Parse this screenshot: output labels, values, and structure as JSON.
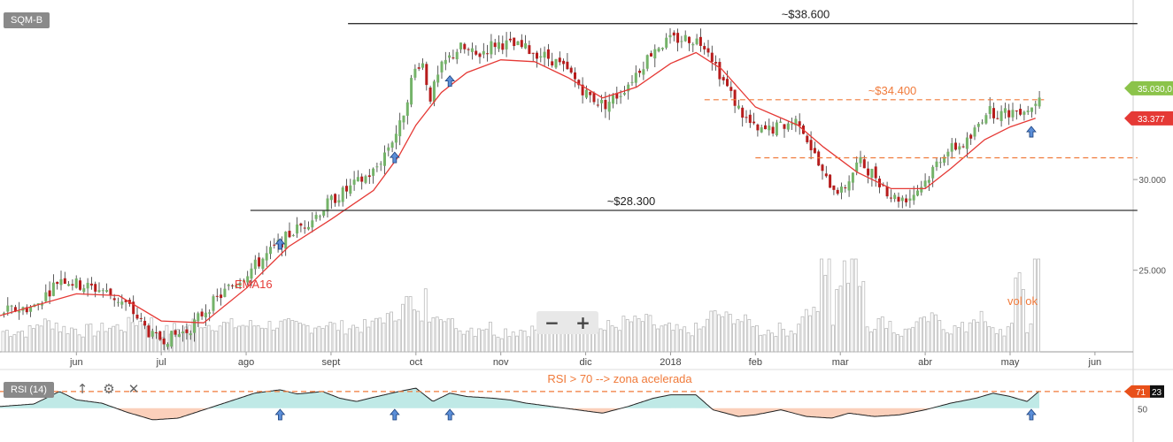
{
  "symbol": "SQM-B",
  "indicator_label": "RSI (14)",
  "tools": {
    "up_icon": "arrow-up-icon",
    "settings_icon": "gear-icon",
    "close_icon": "close-icon"
  },
  "zoom": {
    "minus_label": "−",
    "plus_label": "+"
  },
  "colors": {
    "bull": "#74b369",
    "bear": "#b71c1c",
    "ema": "#e53935",
    "annotation": "#f07a3a",
    "level_line": "#333333",
    "price_up_tag": "#8bc34a",
    "price_down_tag": "#e53935",
    "rsi_over": "#bfe9e6",
    "rsi_under": "#fbd0bb"
  },
  "chart_data": {
    "type": "candlestick",
    "title": "SQM-B",
    "x_ticks": [
      "jun",
      "jul",
      "ago",
      "sept",
      "oct",
      "nov",
      "dic",
      "2018",
      "feb",
      "mar",
      "abr",
      "may",
      "jun"
    ],
    "x_tick_months": [
      5,
      6,
      7,
      8,
      9,
      10,
      11,
      12,
      13,
      14,
      15,
      16,
      17
    ],
    "x_range_months": [
      4.1,
      17.45
    ],
    "y_ticks": [
      25000,
      30000
    ],
    "y_tick_labels": [
      "25.000",
      "30.000"
    ],
    "ylim": [
      20500,
      39900
    ],
    "price_path": [
      [
        4.1,
        22700
      ],
      [
        4.5,
        23000
      ],
      [
        4.8,
        24600
      ],
      [
        5.0,
        24200
      ],
      [
        5.3,
        23900
      ],
      [
        5.6,
        23000
      ],
      [
        5.9,
        21200
      ],
      [
        6.1,
        21300
      ],
      [
        6.3,
        21700
      ],
      [
        6.5,
        22800
      ],
      [
        6.8,
        24100
      ],
      [
        7.1,
        25300
      ],
      [
        7.5,
        27000
      ],
      [
        7.8,
        28000
      ],
      [
        8.0,
        28900
      ],
      [
        8.2,
        29500
      ],
      [
        8.5,
        30500
      ],
      [
        8.8,
        33000
      ],
      [
        8.95,
        35800
      ],
      [
        9.05,
        36700
      ],
      [
        9.15,
        34500
      ],
      [
        9.3,
        36300
      ],
      [
        9.5,
        37300
      ],
      [
        9.7,
        36800
      ],
      [
        9.9,
        37500
      ],
      [
        10.0,
        37500
      ],
      [
        10.2,
        37300
      ],
      [
        10.4,
        37000
      ],
      [
        10.6,
        36600
      ],
      [
        10.8,
        35800
      ],
      [
        11.0,
        34700
      ],
      [
        11.2,
        34100
      ],
      [
        11.4,
        34800
      ],
      [
        11.6,
        36000
      ],
      [
        11.8,
        37300
      ],
      [
        12.0,
        37700
      ],
      [
        12.2,
        37800
      ],
      [
        12.4,
        37500
      ],
      [
        12.6,
        35500
      ],
      [
        12.8,
        33800
      ],
      [
        13.0,
        32600
      ],
      [
        13.2,
        32800
      ],
      [
        13.5,
        33300
      ],
      [
        13.8,
        30000
      ],
      [
        14.0,
        29300
      ],
      [
        14.2,
        31000
      ],
      [
        14.4,
        30200
      ],
      [
        14.6,
        29000
      ],
      [
        14.8,
        29000
      ],
      [
        15.0,
        30000
      ],
      [
        15.2,
        31500
      ],
      [
        15.5,
        32100
      ],
      [
        15.7,
        33800
      ],
      [
        15.9,
        33600
      ],
      [
        16.1,
        33900
      ],
      [
        16.25,
        34000
      ],
      [
        16.35,
        35030
      ]
    ],
    "ema": {
      "name": "EMA16",
      "points": [
        [
          4.1,
          22500
        ],
        [
          5.0,
          23700
        ],
        [
          5.5,
          23600
        ],
        [
          6.0,
          22200
        ],
        [
          6.5,
          22100
        ],
        [
          7.0,
          24000
        ],
        [
          7.5,
          26300
        ],
        [
          8.0,
          27800
        ],
        [
          8.5,
          29400
        ],
        [
          8.8,
          31300
        ],
        [
          9.0,
          33000
        ],
        [
          9.3,
          34800
        ],
        [
          9.6,
          35900
        ],
        [
          10.0,
          36600
        ],
        [
          10.4,
          36500
        ],
        [
          10.8,
          35600
        ],
        [
          11.2,
          34500
        ],
        [
          11.6,
          35100
        ],
        [
          12.0,
          36400
        ],
        [
          12.3,
          37000
        ],
        [
          12.6,
          36100
        ],
        [
          13.0,
          34000
        ],
        [
          13.5,
          33000
        ],
        [
          13.8,
          31800
        ],
        [
          14.2,
          30400
        ],
        [
          14.6,
          29500
        ],
        [
          15.0,
          29500
        ],
        [
          15.3,
          30600
        ],
        [
          15.7,
          32200
        ],
        [
          16.0,
          32900
        ],
        [
          16.3,
          33377
        ]
      ]
    },
    "levels": [
      {
        "label": "~$38.600",
        "value": 38600,
        "from": 8.2,
        "to": 17.5,
        "style": "solid"
      },
      {
        "label": "~$28.300",
        "value": 28300,
        "from": 7.05,
        "to": 17.5,
        "style": "solid"
      },
      {
        "label": "~$34.400",
        "value": 34400,
        "from": 12.4,
        "to": 16.4,
        "style": "dashed"
      },
      {
        "label": "",
        "value": 31200,
        "from": 13.0,
        "to": 17.5,
        "style": "dashed"
      }
    ],
    "signal_arrows_months": [
      7.4,
      8.75,
      9.4,
      16.25
    ],
    "volume": {
      "note": "vol ok",
      "spikes_months": [
        13.8,
        14.0,
        14.2,
        16.1,
        16.35
      ]
    },
    "last_price": {
      "label": "35.030,0",
      "value": 35030
    },
    "ema_last": {
      "label": "33.377",
      "value": 33377
    },
    "annotations": {
      "ema_label": "EMA16",
      "vol_note": "vol ok"
    },
    "rsi": {
      "name": "RSI (14)",
      "note": "RSI > 70 --> zona acelerada",
      "level": 70,
      "mid": 50,
      "last_label": "71",
      "mid_label": "50",
      "aux_label": "23",
      "points": [
        [
          4.1,
          52
        ],
        [
          4.5,
          55
        ],
        [
          4.8,
          70
        ],
        [
          5.0,
          60
        ],
        [
          5.3,
          56
        ],
        [
          5.6,
          45
        ],
        [
          5.9,
          36
        ],
        [
          6.2,
          38
        ],
        [
          6.5,
          48
        ],
        [
          6.8,
          58
        ],
        [
          7.1,
          68
        ],
        [
          7.4,
          72
        ],
        [
          7.6,
          67
        ],
        [
          7.9,
          70
        ],
        [
          8.1,
          62
        ],
        [
          8.3,
          58
        ],
        [
          8.5,
          63
        ],
        [
          8.8,
          70
        ],
        [
          9.0,
          74
        ],
        [
          9.2,
          58
        ],
        [
          9.4,
          68
        ],
        [
          9.6,
          64
        ],
        [
          9.9,
          62
        ],
        [
          10.1,
          60
        ],
        [
          10.3,
          56
        ],
        [
          10.6,
          52
        ],
        [
          10.9,
          48
        ],
        [
          11.2,
          44
        ],
        [
          11.5,
          52
        ],
        [
          11.8,
          62
        ],
        [
          12.0,
          66
        ],
        [
          12.3,
          66
        ],
        [
          12.5,
          48
        ],
        [
          12.8,
          40
        ],
        [
          13.0,
          42
        ],
        [
          13.3,
          48
        ],
        [
          13.6,
          40
        ],
        [
          13.9,
          38
        ],
        [
          14.1,
          44
        ],
        [
          14.4,
          40
        ],
        [
          14.7,
          42
        ],
        [
          15.0,
          48
        ],
        [
          15.3,
          56
        ],
        [
          15.6,
          62
        ],
        [
          15.8,
          68
        ],
        [
          16.0,
          64
        ],
        [
          16.2,
          58
        ],
        [
          16.35,
          71
        ]
      ]
    }
  }
}
